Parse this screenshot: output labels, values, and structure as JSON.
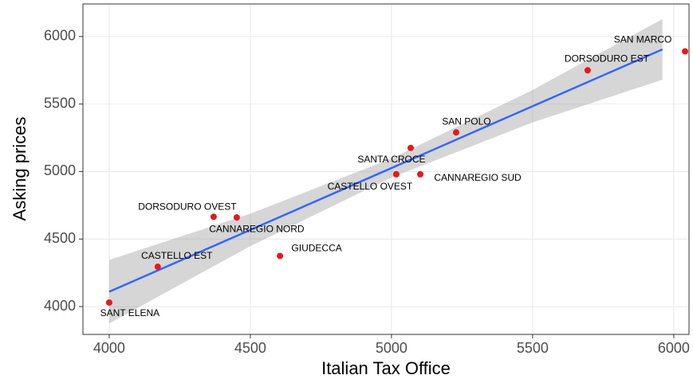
{
  "chart_data": {
    "type": "scatter",
    "x_label": "Italian Tax Office",
    "y_label": "Asking prices",
    "x": [
      4000,
      4172,
      4370,
      4452,
      4605,
      5017,
      5068,
      5102,
      5229,
      5695,
      6040
    ],
    "values": [
      4030,
      4295,
      4665,
      4660,
      4375,
      4980,
      5175,
      4980,
      5290,
      5750,
      5890
    ],
    "labels": [
      "SANT ELENA",
      "CASTELLO EST",
      "DORSODURO OVEST",
      "CANNAREGIO NORD",
      "GIUDECCA",
      "CASTELLO OVEST",
      "SANTA CROCE",
      "CANNAREGIO SUD",
      "SAN POLO",
      "DORSODURO EST",
      "SAN MARCO"
    ],
    "color": "#e41a1c",
    "fit": {
      "x": [
        4000,
        4500,
        5000,
        5500,
        5960
      ],
      "values": [
        4110,
        4568,
        5026,
        5484,
        5905
      ],
      "lower": [
        3875,
        4448,
        4956,
        5364,
        5680
      ],
      "upper": [
        4345,
        4688,
        5096,
        5604,
        6130
      ],
      "color": "#3366ff",
      "band_color": "#999999"
    },
    "xlim": [
      3907,
      6054
    ],
    "ylim": [
      3794,
      6241
    ],
    "xticks": [
      4000,
      4500,
      5000,
      5500,
      6000
    ],
    "yticks": [
      4000,
      4500,
      5000,
      5500,
      6000
    ],
    "grid": true
  }
}
